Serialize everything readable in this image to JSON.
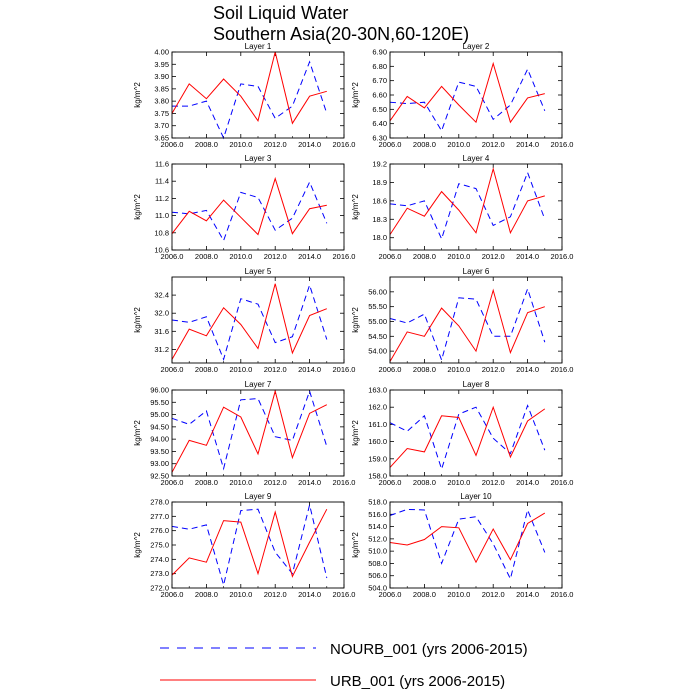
{
  "title": {
    "line1": "Soil Liquid Water",
    "line2": "Southern Asia(20-30N,60-120E)"
  },
  "legend": [
    {
      "label": "NOURB_001 (yrs 2006-2015)",
      "color": "#0000ff",
      "style": "dashed"
    },
    {
      "label": "URB_001 (yrs 2006-2015)",
      "color": "#ff0000",
      "style": "solid"
    }
  ],
  "chart_data": [
    {
      "type": "line",
      "title": "Layer 1",
      "ylabel": "kg/m^2",
      "x": [
        2006,
        2007,
        2008,
        2009,
        2010,
        2011,
        2012,
        2013,
        2014,
        2015
      ],
      "xlim": [
        2006,
        2016
      ],
      "xticks": [
        "2006.0",
        "2008.0",
        "2010.0",
        "2012.0",
        "2014.0",
        "2016.0"
      ],
      "ylim": [
        3.65,
        4.0
      ],
      "yticks": [
        "3.65",
        "3.70",
        "3.75",
        "3.80",
        "3.85",
        "3.90",
        "3.95",
        "4.00"
      ],
      "series": [
        {
          "name": "NOURB_001 (yrs 2006-2015)",
          "values": [
            3.78,
            3.78,
            3.8,
            3.65,
            3.87,
            3.86,
            3.73,
            3.78,
            3.96,
            3.75
          ]
        },
        {
          "name": "URB_001 (yrs 2006-2015)",
          "values": [
            3.75,
            3.87,
            3.81,
            3.89,
            3.82,
            3.72,
            4.0,
            3.71,
            3.82,
            3.84
          ]
        }
      ]
    },
    {
      "type": "line",
      "title": "Layer 2",
      "ylabel": "kg/m^2",
      "x": [
        2006,
        2007,
        2008,
        2009,
        2010,
        2011,
        2012,
        2013,
        2014,
        2015
      ],
      "xlim": [
        2006,
        2016
      ],
      "xticks": [
        "2006.0",
        "2008.0",
        "2010.0",
        "2012.0",
        "2014.0",
        "2016.0"
      ],
      "ylim": [
        6.3,
        6.9
      ],
      "yticks": [
        "6.30",
        "6.40",
        "6.50",
        "6.60",
        "6.70",
        "6.80",
        "6.90"
      ],
      "series": [
        {
          "name": "NOURB_001 (yrs 2006-2015)",
          "values": [
            6.55,
            6.54,
            6.55,
            6.35,
            6.69,
            6.66,
            6.43,
            6.53,
            6.78,
            6.49
          ]
        },
        {
          "name": "URB_001 (yrs 2006-2015)",
          "values": [
            6.42,
            6.59,
            6.51,
            6.66,
            6.53,
            6.41,
            6.82,
            6.41,
            6.58,
            6.61
          ]
        }
      ]
    },
    {
      "type": "line",
      "title": "Layer 3",
      "ylabel": "kg/m^2",
      "x": [
        2006,
        2007,
        2008,
        2009,
        2010,
        2011,
        2012,
        2013,
        2014,
        2015
      ],
      "xlim": [
        2006,
        2016
      ],
      "xticks": [
        "2006.0",
        "2008.0",
        "2010.0",
        "2012.0",
        "2014.0",
        "2016.0"
      ],
      "ylim": [
        10.6,
        11.6
      ],
      "yticks": [
        "10.6",
        "10.8",
        "11.0",
        "11.2",
        "11.4",
        "11.6"
      ],
      "series": [
        {
          "name": "NOURB_001 (yrs 2006-2015)",
          "values": [
            11.04,
            11.02,
            11.06,
            10.71,
            11.27,
            11.21,
            10.83,
            10.97,
            11.39,
            10.91
          ]
        },
        {
          "name": "URB_001 (yrs 2006-2015)",
          "values": [
            10.79,
            11.05,
            10.94,
            11.18,
            10.98,
            10.78,
            11.43,
            10.79,
            11.08,
            11.12
          ]
        }
      ]
    },
    {
      "type": "line",
      "title": "Layer 4",
      "ylabel": "kg/m^2",
      "x": [
        2006,
        2007,
        2008,
        2009,
        2010,
        2011,
        2012,
        2013,
        2014,
        2015
      ],
      "xlim": [
        2006,
        2016
      ],
      "xticks": [
        "2006.0",
        "2008.0",
        "2010.0",
        "2012.0",
        "2014.0",
        "2016.0"
      ],
      "ylim": [
        17.8,
        19.2
      ],
      "yticks": [
        "18.0",
        "18.3",
        "18.6",
        "18.9",
        "19.2"
      ],
      "series": [
        {
          "name": "NOURB_001 (yrs 2006-2015)",
          "values": [
            18.55,
            18.52,
            18.6,
            17.98,
            18.88,
            18.8,
            18.2,
            18.34,
            19.06,
            18.3
          ]
        },
        {
          "name": "URB_001 (yrs 2006-2015)",
          "values": [
            18.05,
            18.48,
            18.35,
            18.75,
            18.45,
            18.08,
            19.12,
            18.08,
            18.6,
            18.68
          ]
        }
      ]
    },
    {
      "type": "line",
      "title": "Layer 5",
      "ylabel": "kg/m^2",
      "x": [
        2006,
        2007,
        2008,
        2009,
        2010,
        2011,
        2012,
        2013,
        2014,
        2015
      ],
      "xlim": [
        2006,
        2016
      ],
      "xticks": [
        "2006.0",
        "2008.0",
        "2010.0",
        "2012.0",
        "2014.0",
        "2016.0"
      ],
      "ylim": [
        30.9,
        32.8
      ],
      "yticks": [
        "31.2",
        "31.6",
        "32.0",
        "32.4"
      ],
      "series": [
        {
          "name": "NOURB_001 (yrs 2006-2015)",
          "values": [
            31.85,
            31.8,
            31.92,
            30.98,
            32.32,
            32.2,
            31.35,
            31.48,
            32.62,
            31.42
          ]
        },
        {
          "name": "URB_001 (yrs 2006-2015)",
          "values": [
            30.98,
            31.65,
            31.5,
            32.12,
            31.75,
            31.22,
            32.65,
            31.12,
            31.95,
            32.1
          ]
        }
      ]
    },
    {
      "type": "line",
      "title": "Layer 6",
      "ylabel": "kg/m^2",
      "x": [
        2006,
        2007,
        2008,
        2009,
        2010,
        2011,
        2012,
        2013,
        2014,
        2015
      ],
      "xlim": [
        2006,
        2016
      ],
      "xticks": [
        "2006.0",
        "2008.0",
        "2010.0",
        "2012.0",
        "2014.0",
        "2016.0"
      ],
      "ylim": [
        53.6,
        56.5
      ],
      "yticks": [
        "54.00",
        "54.50",
        "55.00",
        "55.50",
        "56.00"
      ],
      "series": [
        {
          "name": "NOURB_001 (yrs 2006-2015)",
          "values": [
            55.1,
            54.95,
            55.25,
            53.7,
            55.8,
            55.75,
            54.5,
            54.5,
            56.1,
            54.3
          ]
        },
        {
          "name": "URB_001 (yrs 2006-2015)",
          "values": [
            53.65,
            54.65,
            54.5,
            55.45,
            54.85,
            54.0,
            56.05,
            53.95,
            55.3,
            55.5
          ]
        }
      ]
    },
    {
      "type": "line",
      "title": "Layer 7",
      "ylabel": "kg/m^2",
      "x": [
        2006,
        2007,
        2008,
        2009,
        2010,
        2011,
        2012,
        2013,
        2014,
        2015
      ],
      "xlim": [
        2006,
        2016
      ],
      "xticks": [
        "2006.0",
        "2008.0",
        "2010.0",
        "2012.0",
        "2014.0",
        "2016.0"
      ],
      "ylim": [
        92.5,
        96.0
      ],
      "yticks": [
        "92.50",
        "93.00",
        "93.50",
        "94.00",
        "94.50",
        "95.00",
        "95.50",
        "96.00"
      ],
      "series": [
        {
          "name": "NOURB_001 (yrs 2006-2015)",
          "values": [
            94.85,
            94.6,
            95.15,
            92.8,
            95.6,
            95.65,
            94.1,
            93.95,
            95.95,
            93.7
          ]
        },
        {
          "name": "URB_001 (yrs 2006-2015)",
          "values": [
            92.65,
            93.95,
            93.75,
            95.3,
            94.9,
            93.4,
            95.95,
            93.25,
            95.05,
            95.4
          ]
        }
      ]
    },
    {
      "type": "line",
      "title": "Layer 8",
      "ylabel": "kg/m^2",
      "x": [
        2006,
        2007,
        2008,
        2009,
        2010,
        2011,
        2012,
        2013,
        2014,
        2015
      ],
      "xlim": [
        2006,
        2016
      ],
      "xticks": [
        "2006.0",
        "2008.0",
        "2010.0",
        "2012.0",
        "2014.0",
        "2016.0"
      ],
      "ylim": [
        158.0,
        163.0
      ],
      "yticks": [
        "158.0",
        "159.0",
        "160.0",
        "161.0",
        "162.0",
        "163.0"
      ],
      "series": [
        {
          "name": "NOURB_001 (yrs 2006-2015)",
          "values": [
            161.1,
            160.6,
            161.5,
            158.4,
            161.6,
            162.0,
            160.2,
            159.3,
            162.1,
            159.5
          ]
        },
        {
          "name": "URB_001 (yrs 2006-2015)",
          "values": [
            158.5,
            159.6,
            159.4,
            161.5,
            161.4,
            159.2,
            162.0,
            159.1,
            161.2,
            161.9
          ]
        }
      ]
    },
    {
      "type": "line",
      "title": "Layer 9",
      "ylabel": "kg/m^2",
      "x": [
        2006,
        2007,
        2008,
        2009,
        2010,
        2011,
        2012,
        2013,
        2014,
        2015
      ],
      "xlim": [
        2006,
        2016
      ],
      "xticks": [
        "2006.0",
        "2008.0",
        "2010.0",
        "2012.0",
        "2014.0",
        "2016.0"
      ],
      "ylim": [
        272.0,
        278.0
      ],
      "yticks": [
        "272.0",
        "273.0",
        "274.0",
        "275.0",
        "276.0",
        "277.0",
        "278.0"
      ],
      "series": [
        {
          "name": "NOURB_001 (yrs 2006-2015)",
          "values": [
            276.3,
            276.1,
            276.4,
            272.2,
            277.4,
            277.5,
            274.5,
            273.0,
            277.8,
            272.7
          ]
        },
        {
          "name": "URB_001 (yrs 2006-2015)",
          "values": [
            272.9,
            274.1,
            273.8,
            276.7,
            276.6,
            273.0,
            277.3,
            272.8,
            275.2,
            277.5
          ]
        }
      ]
    },
    {
      "type": "line",
      "title": "Layer 10",
      "ylabel": "kg/m^2",
      "x": [
        2006,
        2007,
        2008,
        2009,
        2010,
        2011,
        2012,
        2013,
        2014,
        2015
      ],
      "xlim": [
        2006,
        2016
      ],
      "xticks": [
        "2006.0",
        "2008.0",
        "2010.0",
        "2012.0",
        "2014.0",
        "2016.0"
      ],
      "ylim": [
        504.0,
        518.0
      ],
      "yticks": [
        "504.0",
        "506.0",
        "508.0",
        "510.0",
        "512.0",
        "514.0",
        "516.0",
        "518.0"
      ],
      "series": [
        {
          "name": "NOURB_001 (yrs 2006-2015)",
          "values": [
            515.8,
            516.8,
            516.7,
            508.0,
            515.2,
            515.6,
            511.2,
            505.5,
            516.7,
            509.8
          ]
        },
        {
          "name": "URB_001 (yrs 2006-2015)",
          "values": [
            511.4,
            511.0,
            511.9,
            514.0,
            513.8,
            508.2,
            513.6,
            508.6,
            514.5,
            516.2
          ]
        }
      ]
    }
  ]
}
